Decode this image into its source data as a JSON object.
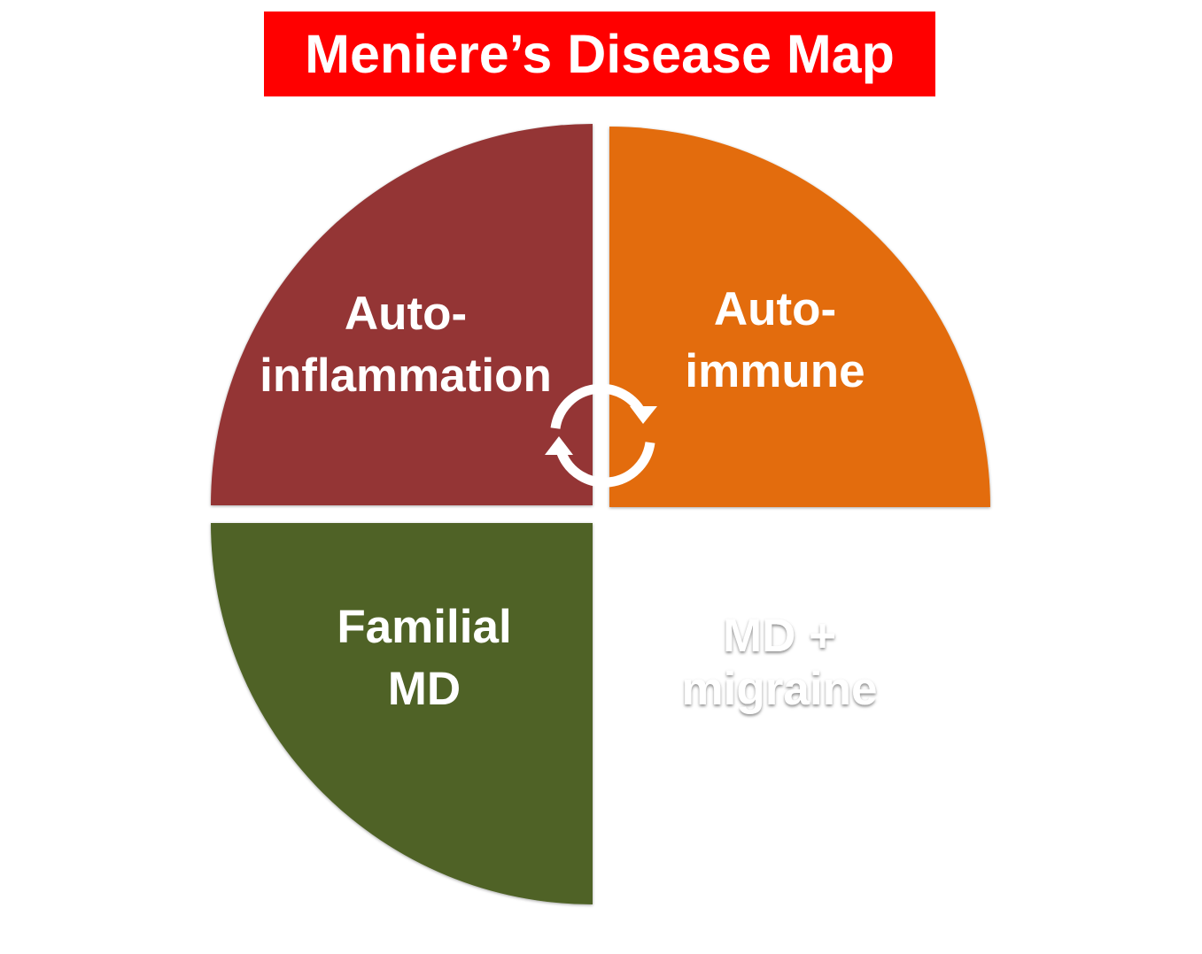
{
  "title": "Meniere’s Disease Map",
  "colors": {
    "title_background": "#ff0000",
    "title_text": "#ffffff",
    "autoinflammation": "#943634",
    "autoimmune": "#e36c0a",
    "familial": "#4f6228",
    "migraine": "#ffffff",
    "label_text": "#ffffff",
    "cycle_icon": "#ffffff"
  },
  "quadrants": {
    "top_left": {
      "line1": "Auto-",
      "line2": "inflammation"
    },
    "top_right": {
      "line1": "Auto-",
      "line2": "immune"
    },
    "bottom_left": {
      "line1": "Familial",
      "line2": "MD"
    },
    "bottom_right": {
      "line1": "MD +",
      "line2": "migraine"
    }
  },
  "center_icon": "cycle-arrows-icon"
}
